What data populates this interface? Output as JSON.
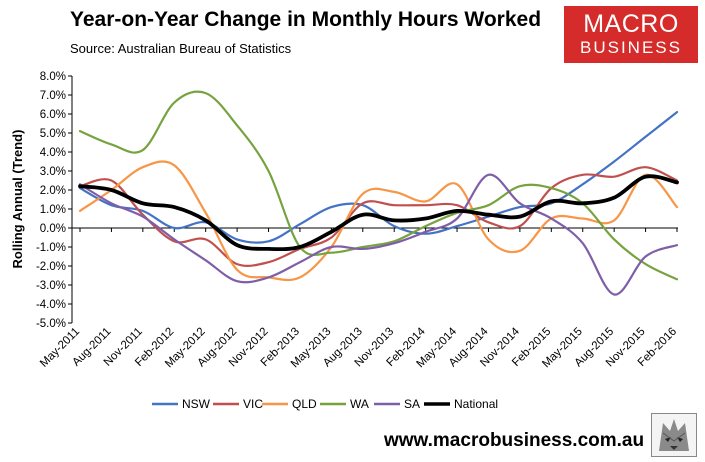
{
  "header": {
    "title": "Year-on-Year Change in Monthly Hours Worked",
    "source": "Source: Australian Bureau of Statistics"
  },
  "logo": {
    "line1": "MACRO",
    "line2": "BUSINESS",
    "color": "#d52b2b"
  },
  "footer": {
    "url": "www.macrobusiness.com.au"
  },
  "chart_data": {
    "type": "line",
    "title": "Year-on-Year Change in Monthly Hours Worked",
    "ylabel": "Rolling Annual (Trend)",
    "xlabel": "",
    "ylim": [
      -5,
      8
    ],
    "y_step": 1,
    "y_ticks": [
      "8.0%",
      "7.0%",
      "6.0%",
      "5.0%",
      "4.0%",
      "3.0%",
      "2.0%",
      "1.0%",
      "0.0%",
      "-1.0%",
      "-2.0%",
      "-3.0%",
      "-4.0%",
      "-5.0%"
    ],
    "x_tick_labels": [
      "May-2011",
      "Aug-2011",
      "Nov-2011",
      "Feb-2012",
      "May-2012",
      "Aug-2012",
      "Nov-2012",
      "Feb-2013",
      "May-2013",
      "Aug-2013",
      "Nov-2013",
      "Feb-2014",
      "May-2014",
      "Aug-2014",
      "Nov-2014",
      "Feb-2015",
      "May-2015",
      "Aug-2015",
      "Nov-2015",
      "Feb-2016"
    ],
    "x_points": [
      "May-2011",
      "Aug-2011",
      "Nov-2011",
      "Feb-2012",
      "May-2012",
      "Aug-2012",
      "Nov-2012",
      "Feb-2013",
      "May-2013",
      "Aug-2013",
      "Nov-2013",
      "Feb-2014",
      "May-2014",
      "Aug-2014",
      "Nov-2014",
      "Feb-2015",
      "May-2015",
      "Aug-2015",
      "Nov-2015",
      "Feb-2016"
    ],
    "grid": false,
    "legend_position": "bottom",
    "series": [
      {
        "name": "NSW",
        "color": "#4472c4",
        "width": 2.2,
        "values": [
          2.1,
          1.2,
          0.9,
          0.0,
          0.3,
          -0.6,
          -0.7,
          0.2,
          1.1,
          1.2,
          0.1,
          -0.3,
          0.1,
          0.6,
          1.1,
          1.3,
          2.3,
          3.5,
          4.8,
          6.1
        ]
      },
      {
        "name": "VIC",
        "color": "#c0504d",
        "width": 2.2,
        "values": [
          2.2,
          2.5,
          0.7,
          -0.7,
          -0.6,
          -1.9,
          -1.8,
          -1.1,
          -0.5,
          1.3,
          1.2,
          1.2,
          1.2,
          0.3,
          0.1,
          2.1,
          2.8,
          2.7,
          3.2,
          2.5
        ]
      },
      {
        "name": "QLD",
        "color": "#f79646",
        "width": 2.2,
        "values": [
          0.9,
          2.0,
          3.2,
          3.3,
          0.8,
          -2.2,
          -2.6,
          -2.6,
          -1.0,
          1.8,
          1.9,
          1.4,
          2.3,
          -0.6,
          -1.2,
          0.5,
          0.5,
          0.4,
          2.8,
          1.1
        ]
      },
      {
        "name": "WA",
        "color": "#77a33f",
        "width": 2.2,
        "values": [
          5.1,
          4.4,
          4.1,
          6.6,
          7.1,
          5.4,
          3.0,
          -1.0,
          -1.3,
          -1.0,
          -0.7,
          0.1,
          0.8,
          1.2,
          2.2,
          2.1,
          1.3,
          -0.6,
          -1.9,
          -2.7
        ]
      },
      {
        "name": "SA",
        "color": "#7f5ea8",
        "width": 2.2,
        "values": [
          2.3,
          1.3,
          0.6,
          -0.6,
          -1.7,
          -2.8,
          -2.6,
          -1.8,
          -1.0,
          -1.1,
          -0.8,
          -0.2,
          0.5,
          2.8,
          1.3,
          0.5,
          -0.8,
          -3.5,
          -1.5,
          -0.9
        ]
      },
      {
        "name": "National",
        "color": "#000000",
        "width": 3.8,
        "values": [
          2.2,
          2.0,
          1.3,
          1.1,
          0.4,
          -0.9,
          -1.1,
          -1.0,
          -0.2,
          0.7,
          0.4,
          0.5,
          0.9,
          0.7,
          0.6,
          1.4,
          1.3,
          1.6,
          2.7,
          2.4
        ]
      }
    ]
  }
}
